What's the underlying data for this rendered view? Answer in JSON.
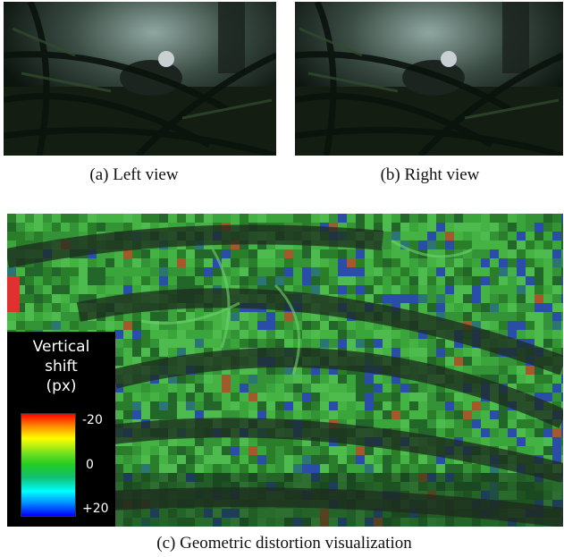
{
  "figure": {
    "panels": [
      {
        "caption": "(a) Left view"
      },
      {
        "caption": "(b) Right view"
      },
      {
        "caption": "(c) Geometric distortion visualization"
      }
    ],
    "legend": {
      "title_lines": [
        "Vertical",
        "shift",
        "(px)"
      ],
      "ticks": {
        "top": "-20",
        "middle": "0",
        "bottom": "+20"
      },
      "colormap": [
        "#ff0000",
        "#ff7f00",
        "#ffff00",
        "#22cc22",
        "#00ffff",
        "#0000ff"
      ]
    }
  }
}
